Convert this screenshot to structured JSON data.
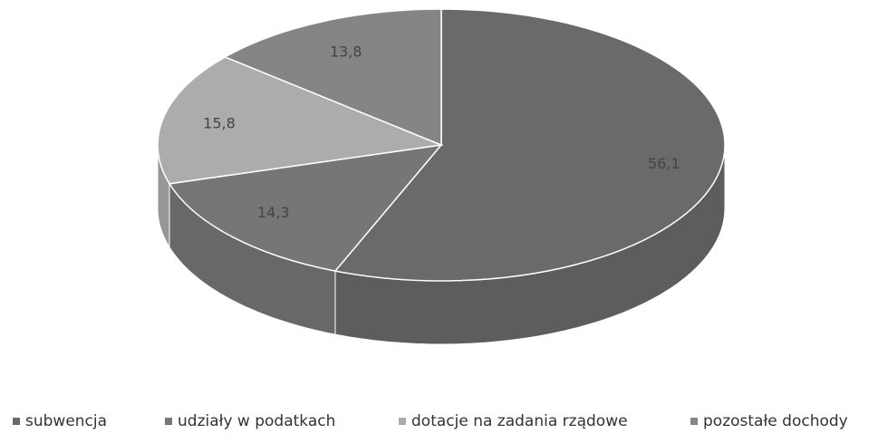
{
  "chart_data": {
    "type": "pie",
    "categories": [
      "subwencja",
      "udziały w podatkach",
      "dotacje na zadania rządowe",
      "pozostałe dochody"
    ],
    "values": [
      56.1,
      14.3,
      15.8,
      13.8
    ],
    "value_labels": [
      "56,1",
      "14,3",
      "15,8",
      "13,8"
    ],
    "colors": [
      "#6a6a6a",
      "#767676",
      "#acacac",
      "#858585"
    ],
    "legend": "bottom"
  }
}
